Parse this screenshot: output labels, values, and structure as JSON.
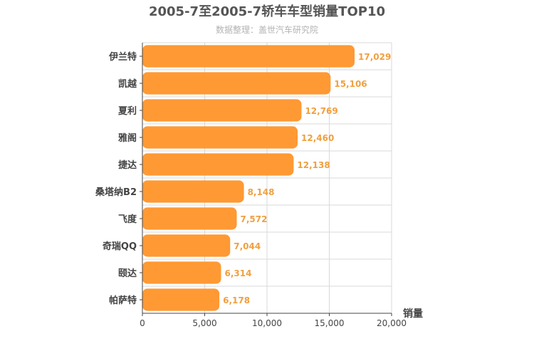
{
  "chart_data": {
    "type": "bar",
    "orientation": "horizontal",
    "title": "2005-7至2005-7轿车车型销量TOP10",
    "subtitle": "数据整理：盖世汽车研究院",
    "xlabel": "销量",
    "ylabel": "",
    "categories": [
      "伊兰特",
      "凯越",
      "夏利",
      "雅阁",
      "捷达",
      "桑塔纳B2",
      "飞度",
      "奇瑞QQ",
      "颐达",
      "帕萨特"
    ],
    "values": [
      17029,
      15106,
      12769,
      12460,
      12138,
      8148,
      7572,
      7044,
      6314,
      6178
    ],
    "value_labels": [
      "17,029",
      "15,106",
      "12,769",
      "12,460",
      "12,138",
      "8,148",
      "7,572",
      "7,044",
      "6,314",
      "6,178"
    ],
    "xlim": [
      0,
      20000
    ],
    "xticks": [
      0,
      5000,
      10000,
      15000,
      20000
    ],
    "xtick_labels": [
      "0",
      "5,000",
      "10,000",
      "15,000",
      "20,000"
    ],
    "grid": true,
    "colors": {
      "bar": "#ff9933",
      "value_label": "#f0a040",
      "title": "#555555",
      "subtitle": "#b3b3b3",
      "grid": "#d9d9d9",
      "axis": "#444444"
    }
  }
}
